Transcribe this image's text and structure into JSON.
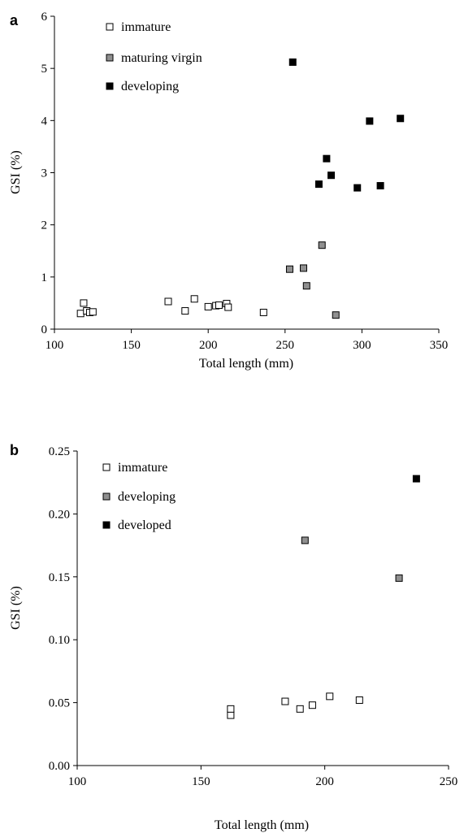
{
  "colors": {
    "immature": "#ffffff",
    "maturing_virgin": "#909090",
    "developing_a": "#000000",
    "developing_b": "#909090",
    "developed": "#000000",
    "marker_stroke": "#000000"
  },
  "chart_data": [
    {
      "type": "scatter",
      "panel": "a",
      "title": "",
      "xlabel": "Total length (mm)",
      "ylabel": "GSI (%)",
      "xlim": [
        100,
        350
      ],
      "ylim": [
        0,
        6
      ],
      "xticks": [
        100,
        150,
        200,
        250,
        300,
        350
      ],
      "yticks": [
        0,
        1,
        2,
        3,
        4,
        5,
        6
      ],
      "xtick_labels": [
        "100",
        "150",
        "200",
        "250",
        "300",
        "350"
      ],
      "ytick_labels": [
        "0",
        "1",
        "2",
        "3",
        "4",
        "5",
        "6"
      ],
      "grid": false,
      "legend": "top-left",
      "series": [
        {
          "name": "immature",
          "marker": "open-square",
          "color_key": "immature",
          "points": [
            [
              117,
              0.3
            ],
            [
              119,
              0.5
            ],
            [
              121,
              0.35
            ],
            [
              123,
              0.32
            ],
            [
              125,
              0.33
            ],
            [
              174,
              0.53
            ],
            [
              185,
              0.35
            ],
            [
              191,
              0.58
            ],
            [
              200,
              0.43
            ],
            [
              205,
              0.45
            ],
            [
              207,
              0.46
            ],
            [
              212,
              0.49
            ],
            [
              213,
              0.42
            ],
            [
              236,
              0.32
            ]
          ]
        },
        {
          "name": "maturing virgin",
          "marker": "filled-square",
          "color_key": "maturing_virgin",
          "points": [
            [
              253,
              1.15
            ],
            [
              262,
              1.17
            ],
            [
              264,
              0.83
            ],
            [
              274,
              1.61
            ],
            [
              283,
              0.27
            ]
          ]
        },
        {
          "name": "developing",
          "marker": "filled-square",
          "color_key": "developing_a",
          "points": [
            [
              255,
              5.12
            ],
            [
              272,
              2.78
            ],
            [
              277,
              3.27
            ],
            [
              280,
              2.95
            ],
            [
              297,
              2.71
            ],
            [
              305,
              3.99
            ],
            [
              312,
              2.75
            ],
            [
              325,
              4.04
            ]
          ]
        }
      ]
    },
    {
      "type": "scatter",
      "panel": "b",
      "title": "",
      "xlabel": "Total length (mm)",
      "ylabel": "GSI (%)",
      "xlim": [
        100,
        250
      ],
      "ylim": [
        0,
        0.25
      ],
      "xticks": [
        100,
        150,
        200,
        250
      ],
      "yticks": [
        0,
        0.05,
        0.1,
        0.15,
        0.2,
        0.25
      ],
      "xtick_labels": [
        "100",
        "150",
        "200",
        "250"
      ],
      "ytick_labels": [
        "0.00",
        "0.05",
        "0.10",
        "0.15",
        "0.20",
        "0.25"
      ],
      "grid": false,
      "legend": "top-left",
      "series": [
        {
          "name": "immature",
          "marker": "open-square",
          "color_key": "immature",
          "points": [
            [
              162,
              0.04
            ],
            [
              162,
              0.045
            ],
            [
              184,
              0.051
            ],
            [
              190,
              0.045
            ],
            [
              195,
              0.048
            ],
            [
              202,
              0.055
            ],
            [
              214,
              0.052
            ]
          ]
        },
        {
          "name": "developing",
          "marker": "filled-square",
          "color_key": "developing_b",
          "points": [
            [
              192,
              0.179
            ],
            [
              230,
              0.149
            ]
          ]
        },
        {
          "name": "developed",
          "marker": "filled-square",
          "color_key": "developed",
          "points": [
            [
              237,
              0.228
            ]
          ]
        }
      ]
    }
  ]
}
